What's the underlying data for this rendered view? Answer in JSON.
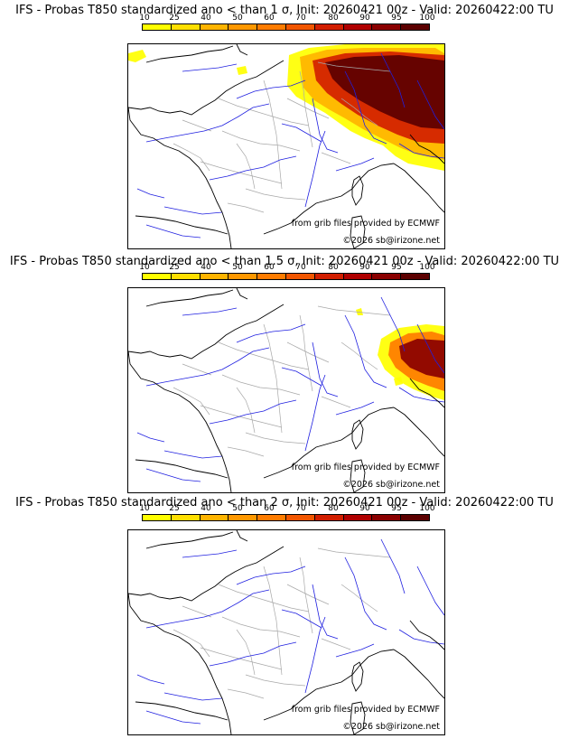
{
  "panels": [
    {
      "title": "IFS - Probas T850  standardized ano < than 1 σ, Init: 20260421 00z - Valid: 20260422:00 TU",
      "source": "from grib files provided by ECMWF",
      "copyright": "©2026 sb@irizone.net",
      "coverage": "large"
    },
    {
      "title": "IFS - Probas T850  standardized ano < than 1.5 σ, Init: 20260421 00z - Valid: 20260422:00 TU",
      "source": "from grib files provided by ECMWF",
      "copyright": "©2026 sb@irizone.net",
      "coverage": "medium"
    },
    {
      "title": "IFS - Probas T850  standardized ano < than 2 σ, Init: 20260421 00z - Valid: 20260422:00 TU",
      "source": "from grib files provided by ECMWF",
      "copyright": "©2026 sb@irizone.net",
      "coverage": "none"
    }
  ],
  "scale": {
    "labels": [
      "10",
      "25",
      "40",
      "50",
      "60",
      "70",
      "80",
      "90",
      "95",
      "100"
    ],
    "colors": [
      "#ffff00",
      "#ffdf00",
      "#ffb400",
      "#ff9800",
      "#ff7c00",
      "#f25600",
      "#d21e00",
      "#b00000",
      "#8a0000",
      "#5c0000"
    ]
  },
  "colors": {
    "coast": "#000000",
    "rivers": "#2020e0",
    "borders": "#a8a8a8"
  }
}
